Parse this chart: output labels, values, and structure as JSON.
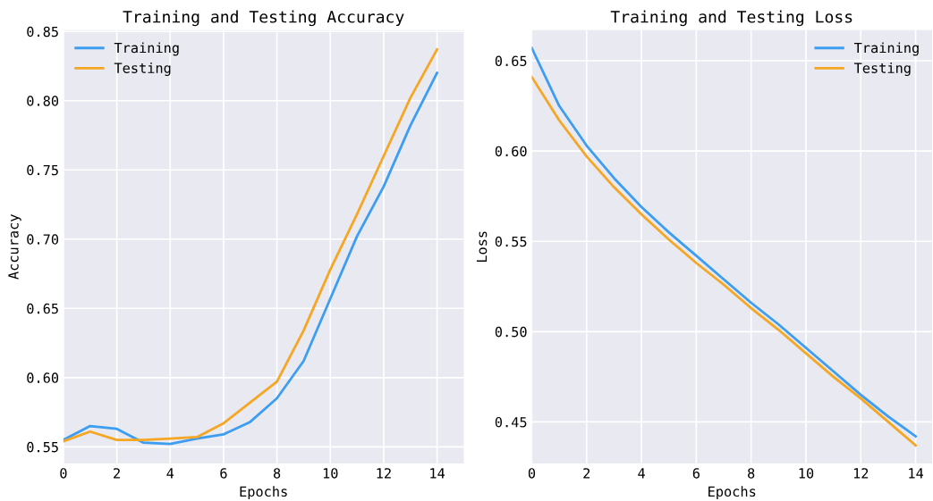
{
  "chart_data": [
    {
      "type": "line",
      "title": "Training and Testing Accuracy",
      "xlabel": "Epochs",
      "ylabel": "Accuracy",
      "x": [
        0,
        1,
        2,
        3,
        4,
        5,
        6,
        7,
        8,
        9,
        10,
        11,
        12,
        13,
        14
      ],
      "series": [
        {
          "name": "Training",
          "color": "#3d9df0",
          "values": [
            0.555,
            0.565,
            0.563,
            0.553,
            0.552,
            0.556,
            0.559,
            0.568,
            0.585,
            0.612,
            0.657,
            0.702,
            0.738,
            0.782,
            0.82
          ]
        },
        {
          "name": "Testing",
          "color": "#f5a623",
          "values": [
            0.554,
            0.561,
            0.555,
            0.555,
            0.556,
            0.557,
            0.567,
            0.582,
            0.597,
            0.634,
            0.678,
            0.718,
            0.76,
            0.802,
            0.837
          ]
        }
      ],
      "xlim": [
        0,
        15
      ],
      "ylim": [
        0.538,
        0.851
      ],
      "xticks": [
        0,
        2,
        4,
        6,
        8,
        10,
        12,
        14
      ],
      "yticks": [
        {
          "value": 0.55,
          "label": "0.55"
        },
        {
          "value": 0.6,
          "label": "0.60"
        },
        {
          "value": 0.65,
          "label": "0.65"
        },
        {
          "value": 0.7,
          "label": "0.70"
        },
        {
          "value": 0.75,
          "label": "0.75"
        },
        {
          "value": 0.8,
          "label": "0.80"
        },
        {
          "value": 0.85,
          "label": "0.85"
        }
      ],
      "grid": true,
      "legend": "top left",
      "marker": "none",
      "line_style": "solid"
    },
    {
      "type": "line",
      "title": "Training and Testing Loss",
      "xlabel": "Epochs",
      "ylabel": "Loss",
      "x": [
        0,
        1,
        2,
        3,
        4,
        5,
        6,
        7,
        8,
        9,
        10,
        11,
        12,
        13,
        14
      ],
      "series": [
        {
          "name": "Training",
          "color": "#3d9df0",
          "values": [
            0.657,
            0.625,
            0.603,
            0.585,
            0.569,
            0.555,
            0.542,
            0.529,
            0.516,
            0.504,
            0.491,
            0.478,
            0.465,
            0.453,
            0.442
          ]
        },
        {
          "name": "Testing",
          "color": "#f5a623",
          "values": [
            0.641,
            0.617,
            0.597,
            0.58,
            0.565,
            0.551,
            0.538,
            0.526,
            0.513,
            0.501,
            0.488,
            0.475,
            0.463,
            0.45,
            0.437
          ]
        }
      ],
      "xlim": [
        0,
        14.6
      ],
      "ylim": [
        0.427,
        0.667
      ],
      "xticks": [
        0,
        2,
        4,
        6,
        8,
        10,
        12,
        14
      ],
      "yticks": [
        {
          "value": 0.45,
          "label": "0.45"
        },
        {
          "value": 0.5,
          "label": "0.50"
        },
        {
          "value": 0.55,
          "label": "0.55"
        },
        {
          "value": 0.6,
          "label": "0.60"
        },
        {
          "value": 0.65,
          "label": "0.65"
        }
      ],
      "grid": true,
      "legend": "top right",
      "marker": "none",
      "line_style": "solid"
    }
  ]
}
